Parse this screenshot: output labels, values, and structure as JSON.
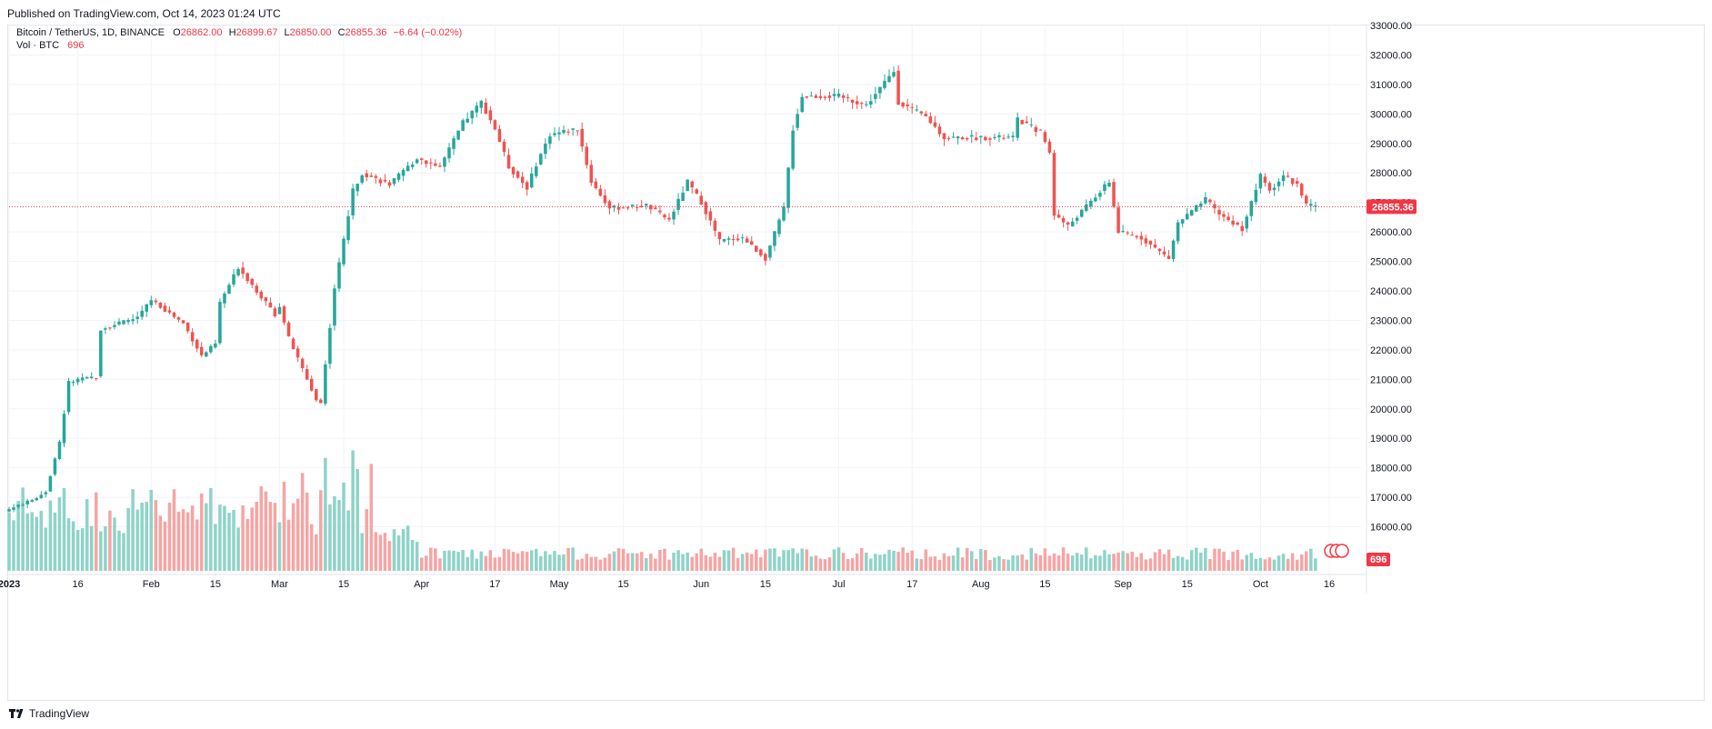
{
  "header": {
    "published": "Published on TradingView.com, Oct 14, 2023 01:24 UTC"
  },
  "legend": {
    "symbol": "Bitcoin / TetherUS, 1D, BINANCE",
    "open_label": "O",
    "open": "26862.00",
    "high_label": "H",
    "high": "26899.67",
    "low_label": "L",
    "low": "26850.00",
    "close_label": "C",
    "close": "26855.36",
    "change": "−6.64 (−0.02%)",
    "vol_label": "Vol · BTC",
    "vol_value": "696"
  },
  "footer": {
    "brand": "TradingView"
  },
  "colors": {
    "up": "#26a69a",
    "down": "#ef5350",
    "up_vol": "#8fd3c8",
    "down_vol": "#f5a5a4",
    "grid": "#f0f3fa",
    "axis_text": "#131722",
    "price_line": "#f23645"
  },
  "chart_data": {
    "type": "candlestick",
    "symbol": "BTC/USDT",
    "interval": "1D",
    "exchange": "BINANCE",
    "y_axis": {
      "min": 15000,
      "max": 33000,
      "ticks": [
        16000,
        17000,
        18000,
        19000,
        20000,
        21000,
        22000,
        23000,
        24000,
        25000,
        26000,
        27000,
        28000,
        29000,
        30000,
        31000,
        32000,
        33000
      ]
    },
    "x_axis": {
      "start": "2023-01-01",
      "end": "2023-10-16",
      "ticks": [
        {
          "date": "2023-01-01",
          "label": "2023"
        },
        {
          "date": "2023-01-16",
          "label": "16"
        },
        {
          "date": "2023-02-01",
          "label": "Feb"
        },
        {
          "date": "2023-02-15",
          "label": "15"
        },
        {
          "date": "2023-03-01",
          "label": "Mar"
        },
        {
          "date": "2023-03-15",
          "label": "15"
        },
        {
          "date": "2023-04-01",
          "label": "Apr"
        },
        {
          "date": "2023-04-17",
          "label": "17"
        },
        {
          "date": "2023-05-01",
          "label": "May"
        },
        {
          "date": "2023-05-15",
          "label": "15"
        },
        {
          "date": "2023-06-01",
          "label": "Jun"
        },
        {
          "date": "2023-06-15",
          "label": "15"
        },
        {
          "date": "2023-07-01",
          "label": "Jul"
        },
        {
          "date": "2023-07-17",
          "label": "17"
        },
        {
          "date": "2023-08-01",
          "label": "Aug"
        },
        {
          "date": "2023-08-15",
          "label": "15"
        },
        {
          "date": "2023-09-01",
          "label": "Sep"
        },
        {
          "date": "2023-09-15",
          "label": "15"
        },
        {
          "date": "2023-10-01",
          "label": "Oct"
        },
        {
          "date": "2023-10-16",
          "label": "16"
        }
      ]
    },
    "last_price": 26855.36,
    "last_price_label": "26855.36",
    "last_volume_label": "696",
    "close_series": [
      {
        "date": "2023-01-01",
        "close": 16600
      },
      {
        "date": "2023-01-06",
        "close": 16900
      },
      {
        "date": "2023-01-09",
        "close": 17200
      },
      {
        "date": "2023-01-12",
        "close": 18850
      },
      {
        "date": "2023-01-14",
        "close": 20900
      },
      {
        "date": "2023-01-20",
        "close": 21100
      },
      {
        "date": "2023-01-21",
        "close": 22700
      },
      {
        "date": "2023-01-29",
        "close": 23100
      },
      {
        "date": "2023-02-01",
        "close": 23700
      },
      {
        "date": "2023-02-08",
        "close": 22900
      },
      {
        "date": "2023-02-12",
        "close": 21800
      },
      {
        "date": "2023-02-15",
        "close": 22200
      },
      {
        "date": "2023-02-16",
        "close": 23600
      },
      {
        "date": "2023-02-20",
        "close": 24800
      },
      {
        "date": "2023-02-28",
        "close": 23200
      },
      {
        "date": "2023-03-01",
        "close": 23500
      },
      {
        "date": "2023-03-03",
        "close": 22400
      },
      {
        "date": "2023-03-09",
        "close": 20300
      },
      {
        "date": "2023-03-10",
        "close": 20200
      },
      {
        "date": "2023-03-13",
        "close": 24100
      },
      {
        "date": "2023-03-17",
        "close": 27400
      },
      {
        "date": "2023-03-19",
        "close": 28000
      },
      {
        "date": "2023-03-25",
        "close": 27600
      },
      {
        "date": "2023-03-31",
        "close": 28500
      },
      {
        "date": "2023-04-05",
        "close": 28200
      },
      {
        "date": "2023-04-10",
        "close": 29700
      },
      {
        "date": "2023-04-14",
        "close": 30400
      },
      {
        "date": "2023-04-17",
        "close": 29500
      },
      {
        "date": "2023-04-20",
        "close": 28200
      },
      {
        "date": "2023-04-24",
        "close": 27500
      },
      {
        "date": "2023-04-26",
        "close": 28300
      },
      {
        "date": "2023-04-29",
        "close": 29300
      },
      {
        "date": "2023-05-05",
        "close": 29500
      },
      {
        "date": "2023-05-08",
        "close": 27700
      },
      {
        "date": "2023-05-12",
        "close": 26800
      },
      {
        "date": "2023-05-20",
        "close": 26900
      },
      {
        "date": "2023-05-25",
        "close": 26400
      },
      {
        "date": "2023-05-29",
        "close": 27700
      },
      {
        "date": "2023-06-01",
        "close": 27000
      },
      {
        "date": "2023-06-05",
        "close": 25700
      },
      {
        "date": "2023-06-10",
        "close": 25800
      },
      {
        "date": "2023-06-15",
        "close": 25100
      },
      {
        "date": "2023-06-19",
        "close": 26800
      },
      {
        "date": "2023-06-21",
        "close": 29500
      },
      {
        "date": "2023-06-23",
        "close": 30600
      },
      {
        "date": "2023-07-01",
        "close": 30600
      },
      {
        "date": "2023-07-07",
        "close": 30300
      },
      {
        "date": "2023-07-13",
        "close": 31450
      },
      {
        "date": "2023-07-14",
        "close": 30400
      },
      {
        "date": "2023-07-20",
        "close": 29900
      },
      {
        "date": "2023-07-24",
        "close": 29200
      },
      {
        "date": "2023-08-01",
        "close": 29200
      },
      {
        "date": "2023-08-08",
        "close": 29200
      },
      {
        "date": "2023-08-09",
        "close": 29800
      },
      {
        "date": "2023-08-14",
        "close": 29400
      },
      {
        "date": "2023-08-16",
        "close": 28700
      },
      {
        "date": "2023-08-17",
        "close": 26600
      },
      {
        "date": "2023-08-20",
        "close": 26200
      },
      {
        "date": "2023-08-29",
        "close": 27700
      },
      {
        "date": "2023-08-31",
        "close": 26000
      },
      {
        "date": "2023-09-05",
        "close": 25800
      },
      {
        "date": "2023-09-11",
        "close": 25100
      },
      {
        "date": "2023-09-13",
        "close": 26300
      },
      {
        "date": "2023-09-19",
        "close": 27100
      },
      {
        "date": "2023-09-22",
        "close": 26600
      },
      {
        "date": "2023-09-27",
        "close": 26100
      },
      {
        "date": "2023-10-01",
        "close": 27900
      },
      {
        "date": "2023-10-03",
        "close": 27400
      },
      {
        "date": "2023-10-06",
        "close": 27900
      },
      {
        "date": "2023-10-09",
        "close": 27600
      },
      {
        "date": "2023-10-11",
        "close": 26900
      },
      {
        "date": "2023-10-13",
        "close": 26855
      }
    ],
    "volume_note": "Volume bars shown in histogram pane (BTC); last bar 696."
  }
}
